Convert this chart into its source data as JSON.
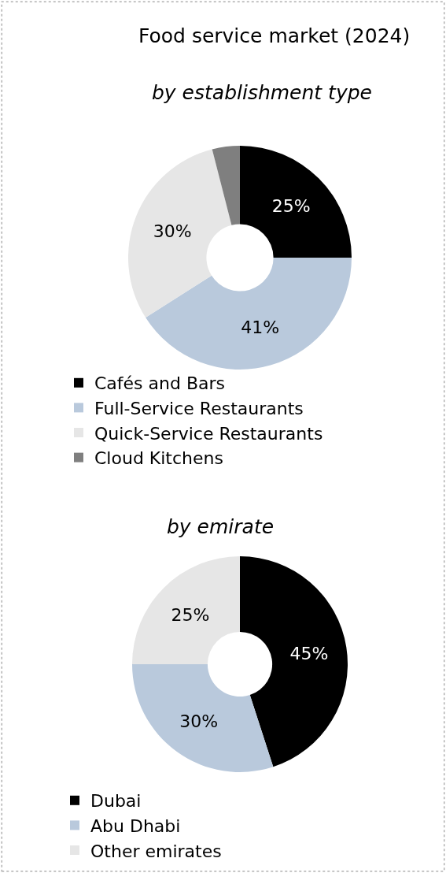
{
  "chart_data": [
    {
      "type": "donut",
      "title": "Food service market (2024)",
      "subtitle": "by establishment type",
      "categories": [
        "Cafés and Bars",
        "Full-Service Restaurants",
        "Quick-Service Restaurants",
        "Cloud Kitchens"
      ],
      "values": [
        25,
        41,
        30,
        4
      ],
      "value_labels": [
        "25%",
        "41%",
        "30%",
        null
      ],
      "colors": [
        "#000000",
        "#b9c9dc",
        "#e6e6e6",
        "#7f7f7f"
      ],
      "legend": "bottom"
    },
    {
      "type": "donut",
      "title": "by emirate",
      "categories": [
        "Dubai",
        "Abu Dhabi",
        "Other emirates"
      ],
      "values": [
        45,
        30,
        25
      ],
      "value_labels": [
        "45%",
        "30%",
        "25%"
      ],
      "colors": [
        "#000000",
        "#b9c9dc",
        "#e6e6e6"
      ],
      "legend": "bottom"
    }
  ]
}
